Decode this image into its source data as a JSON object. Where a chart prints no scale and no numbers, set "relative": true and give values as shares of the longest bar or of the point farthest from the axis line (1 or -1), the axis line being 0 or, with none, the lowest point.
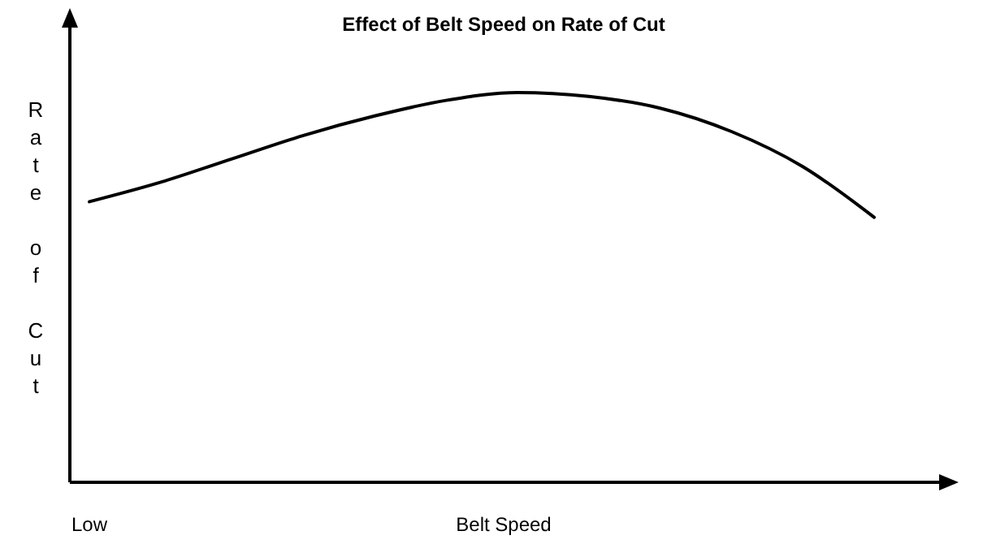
{
  "chart_data": {
    "type": "line",
    "title": "Effect of Belt Speed on Rate of Cut",
    "xlabel": "Belt Speed",
    "ylabel": "Rate of Cut",
    "annotations": [
      "Low"
    ],
    "relative": true,
    "categories": [
      null,
      null,
      null,
      null,
      null,
      null,
      null,
      null,
      null,
      null,
      null,
      null
    ],
    "series": [
      {
        "color": "#000000",
        "values": [
          0.72,
          0.77,
          0.83,
          0.89,
          0.94,
          0.98,
          1.0,
          0.99,
          0.96,
          0.9,
          0.81,
          0.68
        ]
      }
    ],
    "marker": "none",
    "line_style": "solid"
  }
}
